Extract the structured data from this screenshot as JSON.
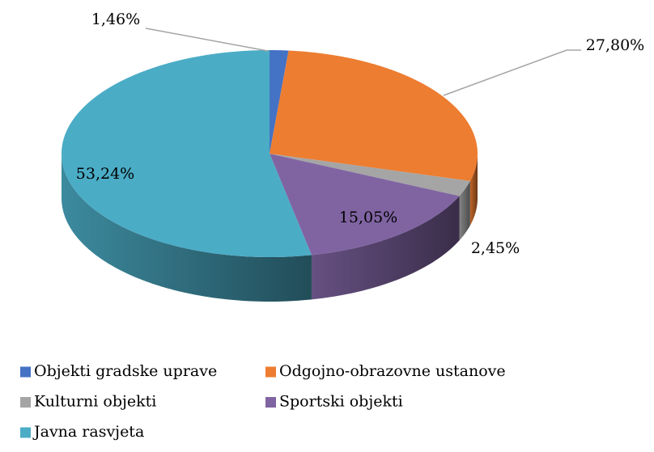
{
  "chart_data": {
    "type": "pie",
    "categories": [
      "Objekti gradske uprave",
      "Odgojno-obrazovne ustanove",
      "Kulturni objekti",
      "Sportski objekti",
      "Javna rasvjeta"
    ],
    "values": [
      1.46,
      27.8,
      2.45,
      15.05,
      53.24
    ],
    "value_labels": [
      "1,46%",
      "27,80%",
      "2,45%",
      "15,05%",
      "53,24%"
    ],
    "colors": [
      "#4472c4",
      "#ed7d31",
      "#a5a5a5",
      "#8064a2",
      "#4bacc6"
    ],
    "legend": "bottom"
  }
}
